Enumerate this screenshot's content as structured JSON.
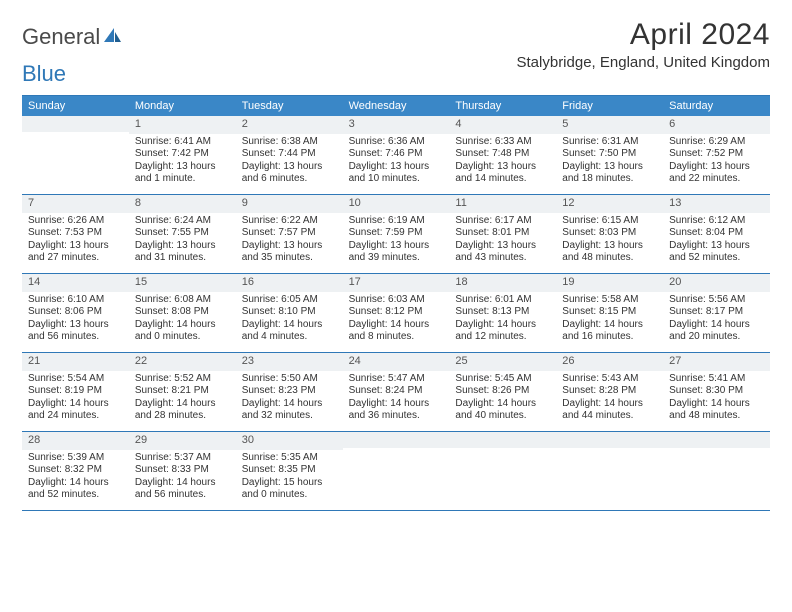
{
  "logo": {
    "text_a": "General",
    "text_b": "Blue"
  },
  "title": "April 2024",
  "location": "Stalybridge, England, United Kingdom",
  "colors": {
    "header_bg": "#3a87c7",
    "header_text": "#ffffff",
    "rule": "#2f78b7",
    "daynum_bg": "#eef1f3",
    "text": "#333333"
  },
  "dow": [
    "Sunday",
    "Monday",
    "Tuesday",
    "Wednesday",
    "Thursday",
    "Friday",
    "Saturday"
  ],
  "weeks": [
    [
      {
        "n": "",
        "sr": "",
        "ss": "",
        "dl": ""
      },
      {
        "n": "1",
        "sr": "Sunrise: 6:41 AM",
        "ss": "Sunset: 7:42 PM",
        "dl": "Daylight: 13 hours and 1 minute."
      },
      {
        "n": "2",
        "sr": "Sunrise: 6:38 AM",
        "ss": "Sunset: 7:44 PM",
        "dl": "Daylight: 13 hours and 6 minutes."
      },
      {
        "n": "3",
        "sr": "Sunrise: 6:36 AM",
        "ss": "Sunset: 7:46 PM",
        "dl": "Daylight: 13 hours and 10 minutes."
      },
      {
        "n": "4",
        "sr": "Sunrise: 6:33 AM",
        "ss": "Sunset: 7:48 PM",
        "dl": "Daylight: 13 hours and 14 minutes."
      },
      {
        "n": "5",
        "sr": "Sunrise: 6:31 AM",
        "ss": "Sunset: 7:50 PM",
        "dl": "Daylight: 13 hours and 18 minutes."
      },
      {
        "n": "6",
        "sr": "Sunrise: 6:29 AM",
        "ss": "Sunset: 7:52 PM",
        "dl": "Daylight: 13 hours and 22 minutes."
      }
    ],
    [
      {
        "n": "7",
        "sr": "Sunrise: 6:26 AM",
        "ss": "Sunset: 7:53 PM",
        "dl": "Daylight: 13 hours and 27 minutes."
      },
      {
        "n": "8",
        "sr": "Sunrise: 6:24 AM",
        "ss": "Sunset: 7:55 PM",
        "dl": "Daylight: 13 hours and 31 minutes."
      },
      {
        "n": "9",
        "sr": "Sunrise: 6:22 AM",
        "ss": "Sunset: 7:57 PM",
        "dl": "Daylight: 13 hours and 35 minutes."
      },
      {
        "n": "10",
        "sr": "Sunrise: 6:19 AM",
        "ss": "Sunset: 7:59 PM",
        "dl": "Daylight: 13 hours and 39 minutes."
      },
      {
        "n": "11",
        "sr": "Sunrise: 6:17 AM",
        "ss": "Sunset: 8:01 PM",
        "dl": "Daylight: 13 hours and 43 minutes."
      },
      {
        "n": "12",
        "sr": "Sunrise: 6:15 AM",
        "ss": "Sunset: 8:03 PM",
        "dl": "Daylight: 13 hours and 48 minutes."
      },
      {
        "n": "13",
        "sr": "Sunrise: 6:12 AM",
        "ss": "Sunset: 8:04 PM",
        "dl": "Daylight: 13 hours and 52 minutes."
      }
    ],
    [
      {
        "n": "14",
        "sr": "Sunrise: 6:10 AM",
        "ss": "Sunset: 8:06 PM",
        "dl": "Daylight: 13 hours and 56 minutes."
      },
      {
        "n": "15",
        "sr": "Sunrise: 6:08 AM",
        "ss": "Sunset: 8:08 PM",
        "dl": "Daylight: 14 hours and 0 minutes."
      },
      {
        "n": "16",
        "sr": "Sunrise: 6:05 AM",
        "ss": "Sunset: 8:10 PM",
        "dl": "Daylight: 14 hours and 4 minutes."
      },
      {
        "n": "17",
        "sr": "Sunrise: 6:03 AM",
        "ss": "Sunset: 8:12 PM",
        "dl": "Daylight: 14 hours and 8 minutes."
      },
      {
        "n": "18",
        "sr": "Sunrise: 6:01 AM",
        "ss": "Sunset: 8:13 PM",
        "dl": "Daylight: 14 hours and 12 minutes."
      },
      {
        "n": "19",
        "sr": "Sunrise: 5:58 AM",
        "ss": "Sunset: 8:15 PM",
        "dl": "Daylight: 14 hours and 16 minutes."
      },
      {
        "n": "20",
        "sr": "Sunrise: 5:56 AM",
        "ss": "Sunset: 8:17 PM",
        "dl": "Daylight: 14 hours and 20 minutes."
      }
    ],
    [
      {
        "n": "21",
        "sr": "Sunrise: 5:54 AM",
        "ss": "Sunset: 8:19 PM",
        "dl": "Daylight: 14 hours and 24 minutes."
      },
      {
        "n": "22",
        "sr": "Sunrise: 5:52 AM",
        "ss": "Sunset: 8:21 PM",
        "dl": "Daylight: 14 hours and 28 minutes."
      },
      {
        "n": "23",
        "sr": "Sunrise: 5:50 AM",
        "ss": "Sunset: 8:23 PM",
        "dl": "Daylight: 14 hours and 32 minutes."
      },
      {
        "n": "24",
        "sr": "Sunrise: 5:47 AM",
        "ss": "Sunset: 8:24 PM",
        "dl": "Daylight: 14 hours and 36 minutes."
      },
      {
        "n": "25",
        "sr": "Sunrise: 5:45 AM",
        "ss": "Sunset: 8:26 PM",
        "dl": "Daylight: 14 hours and 40 minutes."
      },
      {
        "n": "26",
        "sr": "Sunrise: 5:43 AM",
        "ss": "Sunset: 8:28 PM",
        "dl": "Daylight: 14 hours and 44 minutes."
      },
      {
        "n": "27",
        "sr": "Sunrise: 5:41 AM",
        "ss": "Sunset: 8:30 PM",
        "dl": "Daylight: 14 hours and 48 minutes."
      }
    ],
    [
      {
        "n": "28",
        "sr": "Sunrise: 5:39 AM",
        "ss": "Sunset: 8:32 PM",
        "dl": "Daylight: 14 hours and 52 minutes."
      },
      {
        "n": "29",
        "sr": "Sunrise: 5:37 AM",
        "ss": "Sunset: 8:33 PM",
        "dl": "Daylight: 14 hours and 56 minutes."
      },
      {
        "n": "30",
        "sr": "Sunrise: 5:35 AM",
        "ss": "Sunset: 8:35 PM",
        "dl": "Daylight: 15 hours and 0 minutes."
      },
      {
        "n": "",
        "sr": "",
        "ss": "",
        "dl": ""
      },
      {
        "n": "",
        "sr": "",
        "ss": "",
        "dl": ""
      },
      {
        "n": "",
        "sr": "",
        "ss": "",
        "dl": ""
      },
      {
        "n": "",
        "sr": "",
        "ss": "",
        "dl": ""
      }
    ]
  ]
}
